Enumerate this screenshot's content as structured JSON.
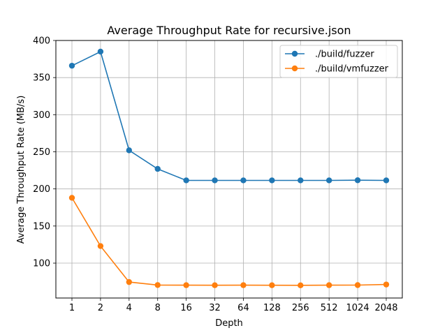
{
  "chart_data": {
    "type": "line",
    "title": "Average Throughput Rate for recursive.json",
    "xlabel": "Depth",
    "ylabel": "Average Throughput Rate (MB/s)",
    "categories": [
      "1",
      "2",
      "4",
      "8",
      "16",
      "32",
      "64",
      "128",
      "256",
      "512",
      "1024",
      "2048"
    ],
    "yticks": [
      "100",
      "150",
      "200",
      "250",
      "300",
      "350",
      "400"
    ],
    "ylim": [
      53,
      400
    ],
    "grid": true,
    "legend_position": "top-right",
    "series": [
      {
        "name": "./build/fuzzer",
        "color": "#1f77b4",
        "values": [
          366,
          385,
          252,
          227,
          211.5,
          211.5,
          211.5,
          211.5,
          211.5,
          211.5,
          211.7,
          211.5
        ]
      },
      {
        "name": "./build/vmfuzzer",
        "color": "#ff7f0e",
        "values": [
          188,
          123,
          74.5,
          70.5,
          70.3,
          70.2,
          70.3,
          70.2,
          70.1,
          70.3,
          70.4,
          71.2
        ]
      }
    ]
  }
}
